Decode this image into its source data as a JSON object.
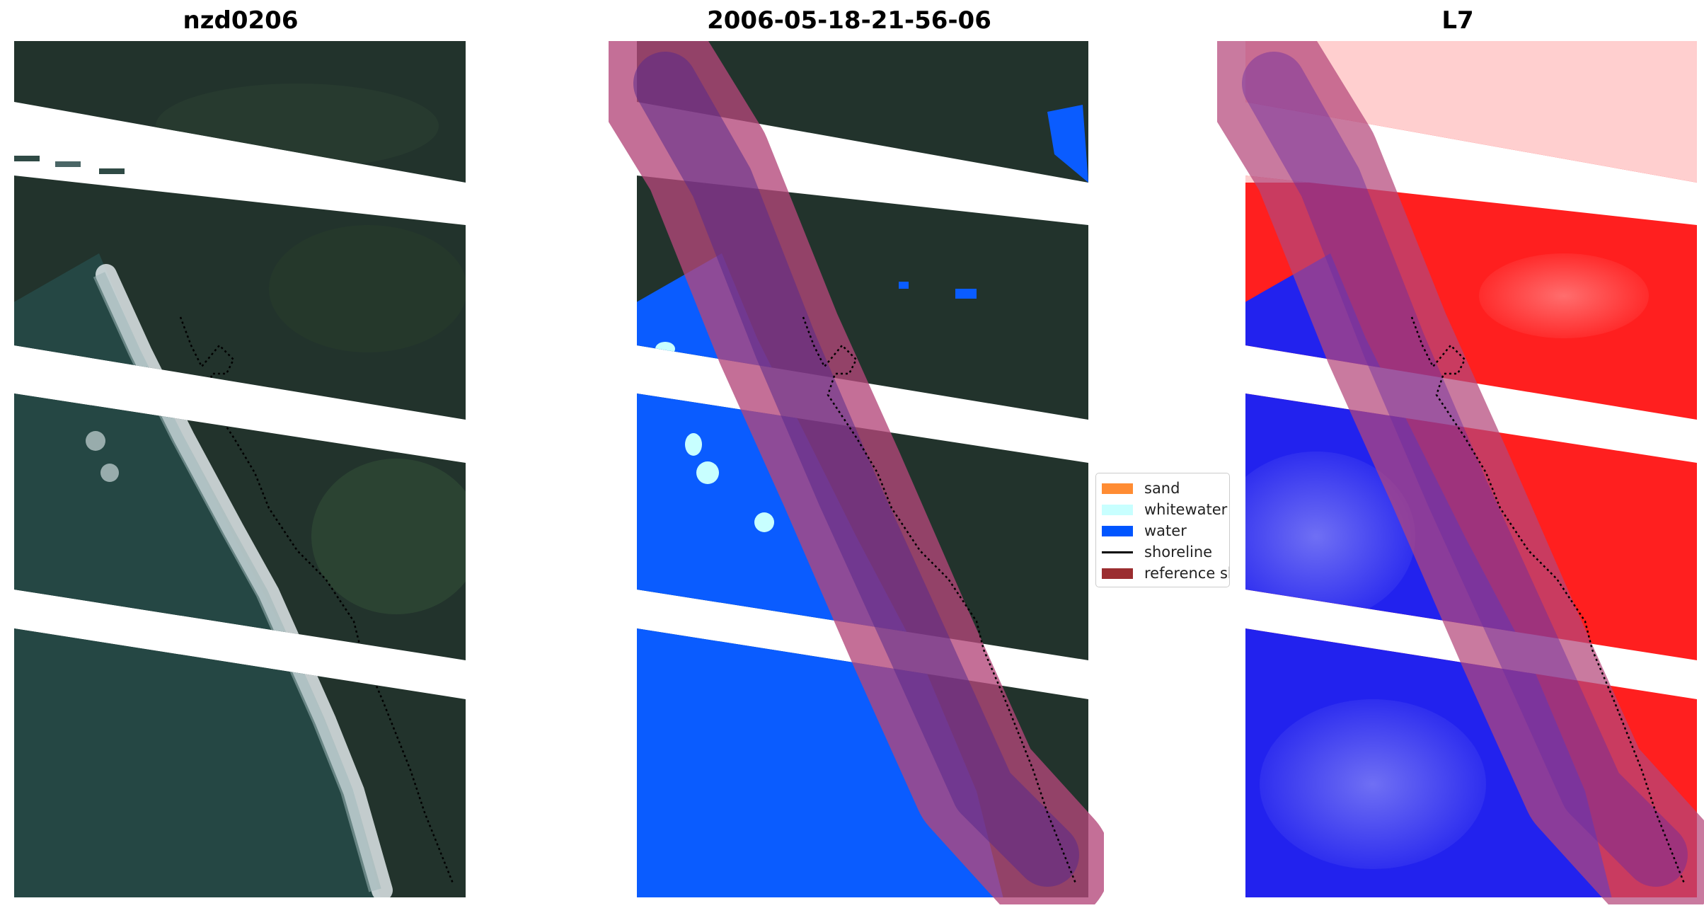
{
  "titles": {
    "left": "nzd0206",
    "middle": "2006-05-18-21-56-06",
    "right": "L7"
  },
  "legend": {
    "items": [
      {
        "label": "sand",
        "kind": "patch",
        "color": "#ff8c33"
      },
      {
        "label": "whitewater",
        "kind": "patch",
        "color": "#c8ffff"
      },
      {
        "label": "water",
        "kind": "patch",
        "color": "#0055ff"
      },
      {
        "label": "shoreline",
        "kind": "line",
        "color": "#000000"
      },
      {
        "label": "reference sh",
        "kind": "patch",
        "color": "#9b2d30"
      }
    ]
  },
  "colors": {
    "land": "#22332c",
    "sea": "#254744",
    "surf": "#e6eef0",
    "water_class": "#0a5cff",
    "whitewater_class": "#c8ffff",
    "buffer": "#b4467a",
    "index_positive": "#ff1f1f",
    "index_negative": "#2222ee"
  }
}
